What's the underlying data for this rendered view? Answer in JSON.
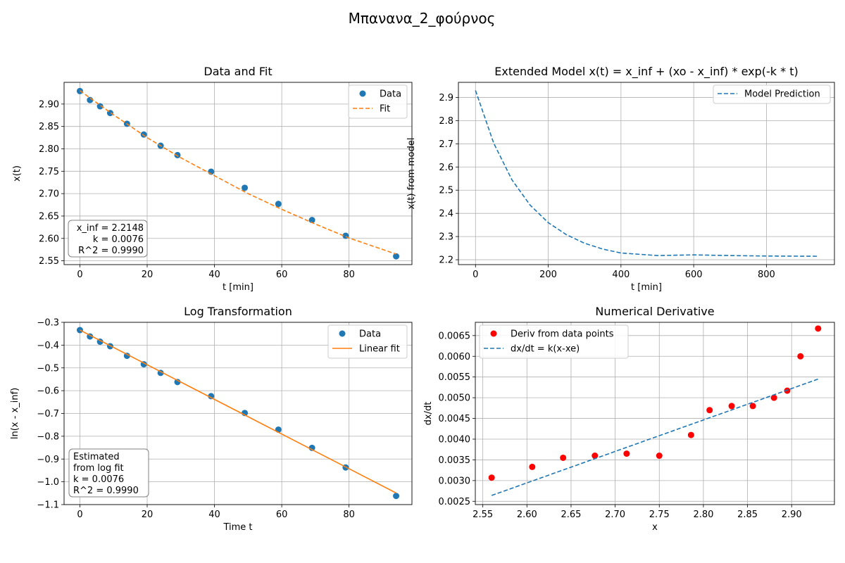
{
  "figure": {
    "title": "Μπανανα_2_φούρνος"
  },
  "chart_data": [
    {
      "id": "p1",
      "type": "scatter",
      "title": "Data and Fit",
      "xlabel": "t [min]",
      "ylabel": "x(t)",
      "xlim": [
        -4.7,
        98.7
      ],
      "ylim": [
        2.5415,
        2.9485
      ],
      "xticks": [
        0,
        20,
        40,
        60,
        80
      ],
      "yticks": [
        2.55,
        2.6,
        2.65,
        2.7,
        2.75,
        2.8,
        2.85,
        2.9
      ],
      "xtick_labels": [
        "0",
        "20",
        "40",
        "60",
        "80"
      ],
      "ytick_labels": [
        "2.55",
        "2.60",
        "2.65",
        "2.70",
        "2.75",
        "2.80",
        "2.85",
        "2.90"
      ],
      "grid": true,
      "legend_position": "top-right",
      "legend": [
        "Data",
        "Fit"
      ],
      "series": [
        {
          "name": "Data",
          "kind": "scatter",
          "color": "#1f77b4",
          "x": [
            0,
            3,
            6,
            9,
            14,
            19,
            24,
            29,
            39,
            49,
            59,
            69,
            79,
            94
          ],
          "y": [
            2.929,
            2.909,
            2.895,
            2.88,
            2.856,
            2.832,
            2.807,
            2.786,
            2.749,
            2.713,
            2.677,
            2.641,
            2.606,
            2.56
          ]
        },
        {
          "name": "Fit",
          "kind": "dashed-line",
          "color": "#ff7f0e",
          "x": [
            0,
            10,
            20,
            30,
            40,
            50,
            60,
            70,
            80,
            94
          ],
          "y": [
            2.93,
            2.876,
            2.825,
            2.78,
            2.74,
            2.7,
            2.665,
            2.632,
            2.601,
            2.565
          ]
        }
      ],
      "annotation": [
        "x_inf = 2.2148",
        "k = 0.0076",
        "R^2 = 0.9990"
      ]
    },
    {
      "id": "p2",
      "type": "line",
      "title": "Extended Model x(t) = x_inf + (xo - x_inf) * exp(-k * t)",
      "xlabel": "t [min]",
      "ylabel": "x(t) from model",
      "xlim": [
        -47,
        987
      ],
      "ylim": [
        2.179,
        2.965
      ],
      "xticks": [
        0,
        200,
        400,
        600,
        800
      ],
      "yticks": [
        2.2,
        2.3,
        2.4,
        2.5,
        2.6,
        2.7,
        2.8,
        2.9
      ],
      "xtick_labels": [
        "0",
        "200",
        "400",
        "600",
        "800"
      ],
      "ytick_labels": [
        "2.2",
        "2.3",
        "2.4",
        "2.5",
        "2.6",
        "2.7",
        "2.8",
        "2.9"
      ],
      "grid": true,
      "legend_position": "top-right",
      "legend": [
        "Model Prediction"
      ],
      "series": [
        {
          "name": "Model Prediction",
          "kind": "dashed-line",
          "color": "#1f77b4",
          "x": [
            0,
            50,
            100,
            150,
            200,
            250,
            300,
            350,
            400,
            500,
            600,
            700,
            800,
            940
          ],
          "y": [
            2.93,
            2.703,
            2.545,
            2.436,
            2.36,
            2.308,
            2.271,
            2.246,
            2.229,
            2.218,
            2.221,
            2.218,
            2.216,
            2.215
          ]
        }
      ]
    },
    {
      "id": "p3",
      "type": "scatter",
      "title": "Log Transformation",
      "xlabel": "Time t",
      "ylabel": "ln(x - x_inf)",
      "xlim": [
        -4.7,
        98.7
      ],
      "ylim": [
        -1.1,
        -0.3
      ],
      "xticks": [
        0,
        20,
        40,
        60,
        80
      ],
      "yticks": [
        -1.1,
        -1.0,
        -0.9,
        -0.8,
        -0.7,
        -0.6,
        -0.5,
        -0.4,
        -0.3
      ],
      "xtick_labels": [
        "0",
        "20",
        "40",
        "60",
        "80"
      ],
      "ytick_labels": [
        "−1.1",
        "−1.0",
        "−0.9",
        "−0.8",
        "−0.7",
        "−0.6",
        "−0.5",
        "−0.4",
        "−0.3"
      ],
      "grid": true,
      "legend_position": "top-right",
      "legend": [
        "Data",
        "Linear fit"
      ],
      "series": [
        {
          "name": "Data",
          "kind": "scatter",
          "color": "#1f77b4",
          "x": [
            0,
            3,
            6,
            9,
            14,
            19,
            24,
            29,
            39,
            49,
            59,
            69,
            79,
            94
          ],
          "y": [
            -0.334,
            -0.362,
            -0.385,
            -0.405,
            -0.447,
            -0.484,
            -0.522,
            -0.562,
            -0.624,
            -0.698,
            -0.771,
            -0.851,
            -0.937,
            -1.062
          ]
        },
        {
          "name": "Linear fit",
          "kind": "line",
          "color": "#ff7f0e",
          "x": [
            0,
            94
          ],
          "y": [
            -0.334,
            -1.049
          ]
        }
      ],
      "annotation": [
        "Estimated",
        "from log fit",
        "k = 0.0076",
        "R^2 = 0.9990"
      ]
    },
    {
      "id": "p4",
      "type": "scatter",
      "title": "Numerical Derivative",
      "xlabel": "x",
      "ylabel": "dx/dt",
      "xlim": [
        2.5415,
        2.9485
      ],
      "ylim": [
        0.00242,
        0.00682
      ],
      "xticks": [
        2.55,
        2.6,
        2.65,
        2.7,
        2.75,
        2.8,
        2.85,
        2.9
      ],
      "yticks": [
        0.0025,
        0.003,
        0.0035,
        0.004,
        0.0045,
        0.005,
        0.0055,
        0.006,
        0.0065
      ],
      "xtick_labels": [
        "2.55",
        "2.60",
        "2.65",
        "2.70",
        "2.75",
        "2.80",
        "2.85",
        "2.90"
      ],
      "ytick_labels": [
        "0.0025",
        "0.0030",
        "0.0035",
        "0.0040",
        "0.0045",
        "0.0050",
        "0.0055",
        "0.0060",
        "0.0065"
      ],
      "grid": true,
      "legend_position": "top-left",
      "legend": [
        "Deriv from data points",
        "dx/dt = k(x-xe)"
      ],
      "series": [
        {
          "name": "Deriv from data points",
          "kind": "scatter",
          "color": "#ff0000",
          "x": [
            2.56,
            2.606,
            2.641,
            2.677,
            2.713,
            2.75,
            2.786,
            2.807,
            2.832,
            2.856,
            2.88,
            2.895,
            2.91,
            2.93
          ],
          "y": [
            0.00307,
            0.00333,
            0.00355,
            0.0036,
            0.00365,
            0.0036,
            0.0041,
            0.0047,
            0.0048,
            0.0048,
            0.005,
            0.00517,
            0.006,
            0.00667
          ]
        },
        {
          "name": "dx/dt = k(x-xe)",
          "kind": "dashed-line",
          "color": "#1f77b4",
          "x": [
            2.56,
            2.93
          ],
          "y": [
            0.00264,
            0.00545
          ]
        }
      ]
    }
  ]
}
